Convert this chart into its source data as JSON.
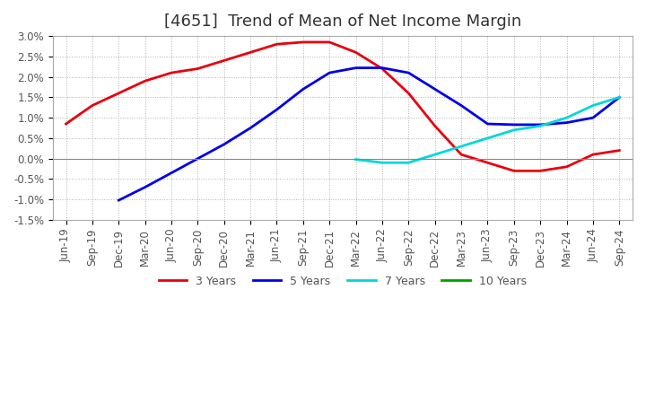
{
  "title": "[4651]  Trend of Mean of Net Income Margin",
  "ylim": [
    -0.015,
    0.03
  ],
  "yticks": [
    -0.015,
    -0.01,
    -0.005,
    0.0,
    0.005,
    0.01,
    0.015,
    0.02,
    0.025,
    0.03
  ],
  "ytick_labels": [
    "-1.5%",
    "-1.0%",
    "-0.5%",
    "0.0%",
    "0.5%",
    "1.0%",
    "1.5%",
    "2.0%",
    "2.5%",
    "3.0%"
  ],
  "xtick_labels": [
    "Jun-19",
    "Sep-19",
    "Dec-19",
    "Mar-20",
    "Jun-20",
    "Sep-20",
    "Dec-20",
    "Mar-21",
    "Jun-21",
    "Sep-21",
    "Dec-21",
    "Mar-22",
    "Jun-22",
    "Sep-22",
    "Dec-22",
    "Mar-23",
    "Jun-23",
    "Sep-23",
    "Dec-23",
    "Mar-24",
    "Jun-24",
    "Sep-24"
  ],
  "series": {
    "3 Years": {
      "color": "#e8000d",
      "x": [
        0,
        1,
        2,
        3,
        4,
        5,
        6,
        7,
        8,
        9,
        10,
        11,
        12,
        13,
        14,
        15,
        16,
        17,
        18,
        19,
        20,
        21
      ],
      "y": [
        0.0085,
        0.013,
        0.016,
        0.019,
        0.021,
        0.022,
        0.024,
        0.026,
        0.028,
        0.0285,
        0.0285,
        0.026,
        0.022,
        0.016,
        0.008,
        0.001,
        -0.001,
        -0.003,
        -0.003,
        -0.002,
        0.001,
        0.002
      ]
    },
    "5 Years": {
      "color": "#0000e8",
      "x": [
        2,
        3,
        4,
        5,
        6,
        7,
        8,
        9,
        10,
        11,
        12,
        13,
        14,
        15,
        16,
        17,
        18,
        19,
        20,
        21
      ],
      "y": [
        -0.0102,
        -0.007,
        -0.0035,
        0.0,
        0.0035,
        0.0075,
        0.012,
        0.017,
        0.021,
        0.0222,
        0.0222,
        0.021,
        0.017,
        0.013,
        0.0085,
        0.0083,
        0.0083,
        0.0088,
        0.01,
        0.015
      ]
    },
    "7 Years": {
      "color": "#00d8d8",
      "x": [
        11,
        12,
        13,
        14,
        15,
        16,
        17,
        18,
        19,
        20,
        21
      ],
      "y": [
        -0.0002,
        -0.001,
        -0.001,
        0.001,
        0.003,
        0.005,
        0.007,
        0.008,
        0.01,
        0.013,
        0.015
      ]
    },
    "10 Years": {
      "color": "#00a000",
      "x": [],
      "y": []
    }
  },
  "background_color": "#ffffff",
  "plot_bg_color": "#ffffff",
  "grid_color": "#aaaaaa",
  "title_fontsize": 13,
  "tick_fontsize": 8.5,
  "legend_fontsize": 9
}
